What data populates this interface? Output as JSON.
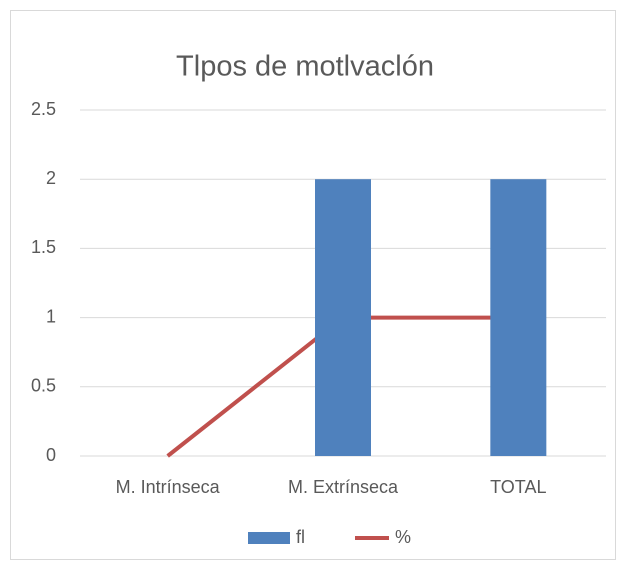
{
  "chart_data": {
    "type": "bar",
    "title": "Tlpos de motlvaclón",
    "categories": [
      "M. Intrínseca",
      "M. Extrínseca",
      "TOTAL"
    ],
    "series": [
      {
        "name": "fl",
        "type": "bar",
        "color": "#4f81bd",
        "values": [
          0,
          2,
          2
        ]
      },
      {
        "name": "%",
        "type": "line",
        "color": "#c0504d",
        "values": [
          0,
          1,
          1
        ]
      }
    ],
    "ylim": [
      0,
      2.5
    ],
    "yticks": [
      0,
      0.5,
      1,
      1.5,
      2,
      2.5
    ],
    "grid": true,
    "legend": "bottom"
  }
}
